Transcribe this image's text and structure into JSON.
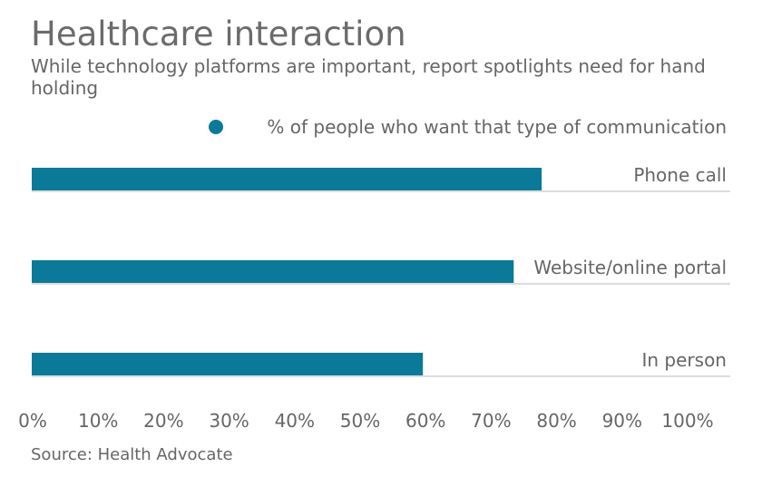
{
  "title": "Healthcare interaction",
  "subtitle": "While technology platforms are important, report spotlights need for hand holding",
  "source": "Source: Health Advocate",
  "colors": {
    "bar": "#0b7a99",
    "text": "#666666",
    "baseline": "#bbbbbb"
  },
  "chart_data": {
    "type": "bar",
    "orientation": "horizontal",
    "categories": [
      "Phone call",
      "Website/online portal",
      "In person"
    ],
    "series": [
      {
        "name": "% of people who want that type of communication",
        "values": [
          73,
          69,
          56
        ]
      }
    ],
    "xlim": [
      0,
      100
    ],
    "xticks": [
      "0%",
      "10%",
      "20%",
      "30%",
      "40%",
      "50%",
      "60%",
      "70%",
      "80%",
      "90%",
      "100%"
    ],
    "grid": false,
    "legend": "top-right"
  }
}
